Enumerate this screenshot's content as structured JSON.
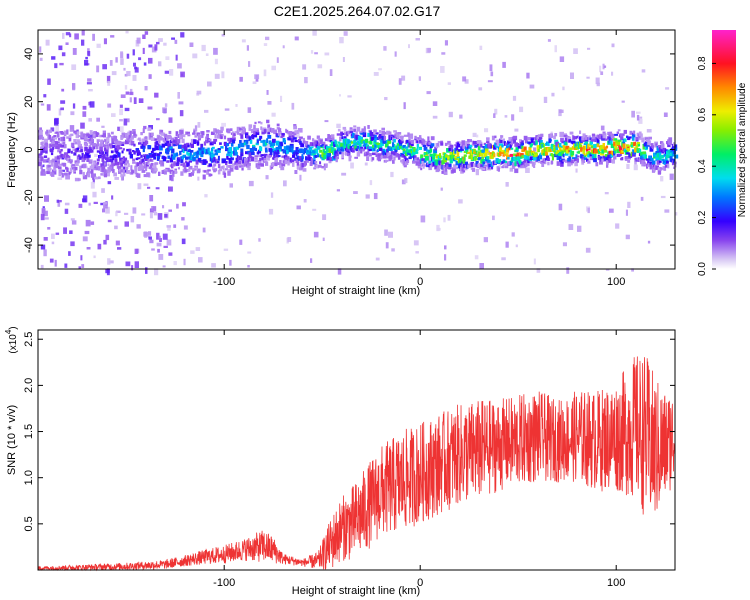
{
  "title": "C2E1.2025.264.07.02.G17",
  "chart_data": [
    {
      "type": "heatmap",
      "title": "C2E1.2025.264.07.02.G17",
      "xlabel": "Height of straight line (km)",
      "ylabel": "Frequency (Hz)",
      "xlim": [
        -195,
        130
      ],
      "ylim": [
        -50,
        50
      ],
      "x_ticks": [
        -100,
        0,
        100
      ],
      "y_ticks": [
        -40,
        -20,
        0,
        20,
        40
      ],
      "colorbar": {
        "label": "Normalized spectral amplitude",
        "range": [
          0.0,
          0.93
        ],
        "ticks": [
          "0.0",
          "0.2",
          "0.4",
          "0.6",
          "0.8"
        ],
        "tick_values": [
          0.0,
          0.2,
          0.4,
          0.6,
          0.8
        ]
      },
      "ridge": {
        "description_points_x": [
          -190,
          -160,
          -140,
          -120,
          -100,
          -80,
          -60,
          -50,
          -40,
          -30,
          -20,
          -10,
          0,
          10,
          20,
          30,
          40,
          50,
          60,
          70,
          80,
          90,
          100,
          110,
          120,
          130
        ],
        "frequency_hz": [
          0,
          -2,
          0,
          -1,
          0,
          3,
          0,
          -1,
          3,
          4,
          3,
          1,
          -1,
          -2,
          -2,
          -1,
          -1,
          -1,
          1,
          0,
          1,
          1,
          2,
          2,
          -2,
          -1
        ],
        "amplitude": [
          0.15,
          0.2,
          0.25,
          0.35,
          0.35,
          0.4,
          0.3,
          0.55,
          0.5,
          0.5,
          0.5,
          0.45,
          0.55,
          0.6,
          0.65,
          0.7,
          0.8,
          0.85,
          0.75,
          0.7,
          0.75,
          0.8,
          0.85,
          0.7,
          0.45,
          0.4
        ]
      }
    },
    {
      "type": "line",
      "xlabel": "Height of straight line (km)",
      "ylabel": "SNR (10 * v/v)",
      "y_multiplier_label": "(x10",
      "y_multiplier_exp": "4",
      "y_multiplier_close": ")",
      "xlim": [
        -195,
        130
      ],
      "ylim": [
        0,
        2.6
      ],
      "x_ticks": [
        -100,
        0,
        100
      ],
      "y_ticks": [
        0.5,
        1.0,
        1.5,
        2.0,
        2.5
      ],
      "series": [
        {
          "name": "SNR",
          "color": "#ee3333",
          "x": [
            -195,
            -170,
            -150,
            -130,
            -120,
            -110,
            -100,
            -90,
            -80,
            -75,
            -70,
            -60,
            -52,
            -45,
            -40,
            -35,
            -30,
            -20,
            -10,
            0,
            10,
            20,
            30,
            40,
            50,
            60,
            70,
            80,
            90,
            100,
            105,
            110,
            115,
            120,
            125,
            130
          ],
          "mean": [
            0.02,
            0.03,
            0.04,
            0.06,
            0.1,
            0.14,
            0.17,
            0.22,
            0.26,
            0.22,
            0.12,
            0.08,
            0.1,
            0.3,
            0.45,
            0.5,
            0.6,
            0.85,
            0.95,
            1.05,
            1.15,
            1.25,
            1.3,
            1.35,
            1.4,
            1.45,
            1.4,
            1.45,
            1.4,
            1.45,
            1.5,
            1.55,
            1.45,
            1.3,
            1.35,
            1.45
          ],
          "spread": [
            0.02,
            0.03,
            0.04,
            0.05,
            0.06,
            0.08,
            0.1,
            0.12,
            0.18,
            0.15,
            0.06,
            0.04,
            0.1,
            0.3,
            0.35,
            0.4,
            0.45,
            0.5,
            0.55,
            0.55,
            0.55,
            0.55,
            0.55,
            0.5,
            0.5,
            0.5,
            0.45,
            0.5,
            0.55,
            0.6,
            0.7,
            0.8,
            0.9,
            0.8,
            0.6,
            0.5
          ]
        }
      ]
    }
  ]
}
